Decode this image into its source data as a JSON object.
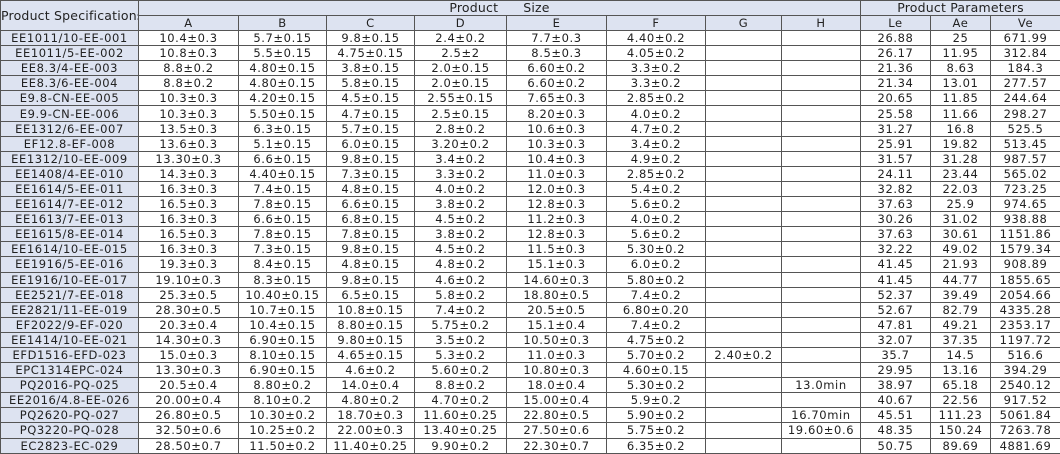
{
  "header": {
    "spec_title": "Product Specifications",
    "size_title": "Product      Size",
    "params_title": "Product Parameters",
    "columns": [
      "A",
      "B",
      "C",
      "D",
      "E",
      "F",
      "G",
      "H",
      "Le",
      "Ae",
      "Ve"
    ]
  },
  "colors": {
    "header_bg": "#dde3f1",
    "border": "#555555"
  },
  "rows": [
    [
      "EE1011/10-EE-001",
      "10.4±0.3",
      "5.7±0.15",
      "9.8±0.15",
      "2.4±0.2",
      "7.7±0.3",
      "4.40±0.2",
      "",
      "",
      "26.88",
      "25",
      "671.99"
    ],
    [
      "EE1011/5-EE-002",
      "10.8±0.3",
      "5.5±0.15",
      "4.75±0.15",
      "2.5±2",
      "8.5±0.3",
      "4.05±0.2",
      "",
      "",
      "26.17",
      "11.95",
      "312.84"
    ],
    [
      "EE8.3/4-EE-003",
      "8.8±0.2",
      "4.80±0.15",
      "3.8±0.15",
      "2.0±0.15",
      "6.60±0.2",
      "3.3±0.2",
      "",
      "",
      "21.36",
      "8.63",
      "184.3"
    ],
    [
      "EE8.3/6-EE-004",
      "8.8±0.2",
      "4.80±0.15",
      "5.8±0.15",
      "2.0±0.15",
      "6.60±0.2",
      "3.3±0.2",
      "",
      "",
      "21.34",
      "13.01",
      "277.57"
    ],
    [
      "E9.8-CN-EE-005",
      "10.3±0.3",
      "4.20±0.15",
      "4.5±0.15",
      "2.55±0.15",
      "7.65±0.3",
      "2.85±0.2",
      "",
      "",
      "20.65",
      "11.85",
      "244.64"
    ],
    [
      "E9.9-CN-EE-006",
      "10.3±0.3",
      "5.50±0.15",
      "4.7±0.15",
      "2.5±0.15",
      "8.20±0.3",
      "4.0±0.2",
      "",
      "",
      "25.58",
      "11.66",
      "298.27"
    ],
    [
      "EE1312/6-EE-007",
      "13.5±0.3",
      "6.3±0.15",
      "5.7±0.15",
      "2.8±0.2",
      "10.6±0.3",
      "4.7±0.2",
      "",
      "",
      "31.27",
      "16.8",
      "525.5"
    ],
    [
      "EF12.8-EF-008",
      "13.6±0.3",
      "5.1±0.15",
      "6.0±0.15",
      "3.20±0.2",
      "10.3±0.3",
      "3.4±0.2",
      "",
      "",
      "25.91",
      "19.82",
      "513.45"
    ],
    [
      "EE1312/10-EE-009",
      "13.30±0.3",
      "6.6±0.15",
      "9.8±0.15",
      "3.4±0.2",
      "10.4±0.3",
      "4.9±0.2",
      "",
      "",
      "31.57",
      "31.28",
      "987.57"
    ],
    [
      "EE1408/4-EE-010",
      "14.3±0.3",
      "4.40±0.15",
      "7.3±0.15",
      "3.3±0.2",
      "11.0±0.3",
      "2.85±0.2",
      "",
      "",
      "24.11",
      "23.44",
      "565.02"
    ],
    [
      "EE1614/5-EE-011",
      "16.3±0.3",
      "7.4±0.15",
      "4.8±0.15",
      "4.0±0.2",
      "12.0±0.3",
      "5.4±0.2",
      "",
      "",
      "32.82",
      "22.03",
      "723.25"
    ],
    [
      "EE1614/7-EE-012",
      "16.5±0.3",
      "7.8±0.15",
      "6.6±0.15",
      "3.8±0.2",
      "12.8±0.3",
      "5.6±0.2",
      "",
      "",
      "37.63",
      "25.9",
      "974.65"
    ],
    [
      "EE1613/7-EE-013",
      "16.3±0.3",
      "6.6±0.15",
      "6.8±0.15",
      "4.5±0.2",
      "11.2±0.3",
      "4.0±0.2",
      "",
      "",
      "30.26",
      "31.02",
      "938.88"
    ],
    [
      "EE1615/8-EE-014",
      "16.5±0.3",
      "7.8±0.15",
      "7.8±0.15",
      "3.8±0.2",
      "12.8±0.3",
      "5.6±0.2",
      "",
      "",
      "37.63",
      "30.61",
      "1151.86"
    ],
    [
      "EE1614/10-EE-015",
      "16.3±0.3",
      "7.3±0.15",
      "9.8±0.15",
      "4.5±0.2",
      "11.5±0.3",
      "5.30±0.2",
      "",
      "",
      "32.22",
      "49.02",
      "1579.34"
    ],
    [
      "EE1916/5-EE-016",
      "19.3±0.3",
      "8.4±0.15",
      "4.8±0.15",
      "4.8±0.2",
      "15.1±0.3",
      "6.0±0.2",
      "",
      "",
      "41.45",
      "21.93",
      "908.89"
    ],
    [
      "EE1916/10-EE-017",
      "19.10±0.3",
      "8.3±0.15",
      "9.8±0.15",
      "4.6±0.2",
      "14.60±0.3",
      "5.80±0.2",
      "",
      "",
      "41.45",
      "44.77",
      "1855.65"
    ],
    [
      "EE2521/7-EE-018",
      "25.3±0.5",
      "10.40±0.15",
      "6.5±0.15",
      "5.8±0.2",
      "18.80±0.5",
      "7.4±0.2",
      "",
      "",
      "52.37",
      "39.49",
      "2054.66"
    ],
    [
      "EE2821/11-EE-019",
      "28.30±0.5",
      "10.7±0.15",
      "10.8±0.15",
      "7.4±0.2",
      "20.5±0.5",
      "6.80±0.20",
      "",
      "",
      "52.67",
      "82.79",
      "4335.28"
    ],
    [
      "EF2022/9-EF-020",
      "20.3±0.4",
      "10.4±0.15",
      "8.80±0.15",
      "5.75±0.2",
      "15.1±0.4",
      "7.4±0.2",
      "",
      "",
      "47.81",
      "49.21",
      "2353.17"
    ],
    [
      "EE1414/10-EE-021",
      "14.30±0.3",
      "6.90±0.15",
      "9.80±0.15",
      "3.5±0.2",
      "10.50±0.3",
      "4.75±0.2",
      "",
      "",
      "32.07",
      "37.35",
      "1197.72"
    ],
    [
      "EFD1516-EFD-023",
      "15.0±0.3",
      "8.10±0.15",
      "4.65±0.15",
      "5.3±0.2",
      "11.0±0.3",
      "5.70±0.2",
      "2.40±0.2",
      "",
      "35.7",
      "14.5",
      "516.6"
    ],
    [
      "EPC1314EPC-024",
      "13.30±0.3",
      "6.90±0.15",
      "4.6±0.2",
      "5.60±0.2",
      "10.80±0.3",
      "4.60±0.15",
      "",
      "",
      "29.95",
      "13.16",
      "394.29"
    ],
    [
      "PQ2016-PQ-025",
      "20.5±0.4",
      "8.80±0.2",
      "14.0±0.4",
      "8.8±0.2",
      "18.0±0.4",
      "5.30±0.2",
      "",
      "13.0min",
      "38.97",
      "65.18",
      "2540.12"
    ],
    [
      "EE2016/4.8-EE-026",
      "20.00±0.4",
      "8.10±0.2",
      "4.80±0.2",
      "4.70±0.2",
      "15.00±0.4",
      "5.9±0.2",
      "",
      "",
      "40.67",
      "22.56",
      "917.52"
    ],
    [
      "PQ2620-PQ-027",
      "26.80±0.5",
      "10.30±0.2",
      "18.70±0.3",
      "11.60±0.25",
      "22.80±0.5",
      "5.90±0.2",
      "",
      "16.70min",
      "45.51",
      "111.23",
      "5061.84"
    ],
    [
      "PQ3220-PQ-028",
      "32.50±0.6",
      "10.25±0.2",
      "22.00±0.3",
      "13.40±0.25",
      "27.50±0.6",
      "5.75±0.2",
      "",
      "19.60±0.6",
      "48.35",
      "150.24",
      "7263.78"
    ],
    [
      "EC2823-EC-029",
      "28.50±0.7",
      "11.50±0.2",
      "11.40±0.25",
      "9.90±0.2",
      "22.30±0.7",
      "6.35±0.2",
      "",
      "",
      "50.75",
      "89.69",
      "4881.69"
    ]
  ]
}
